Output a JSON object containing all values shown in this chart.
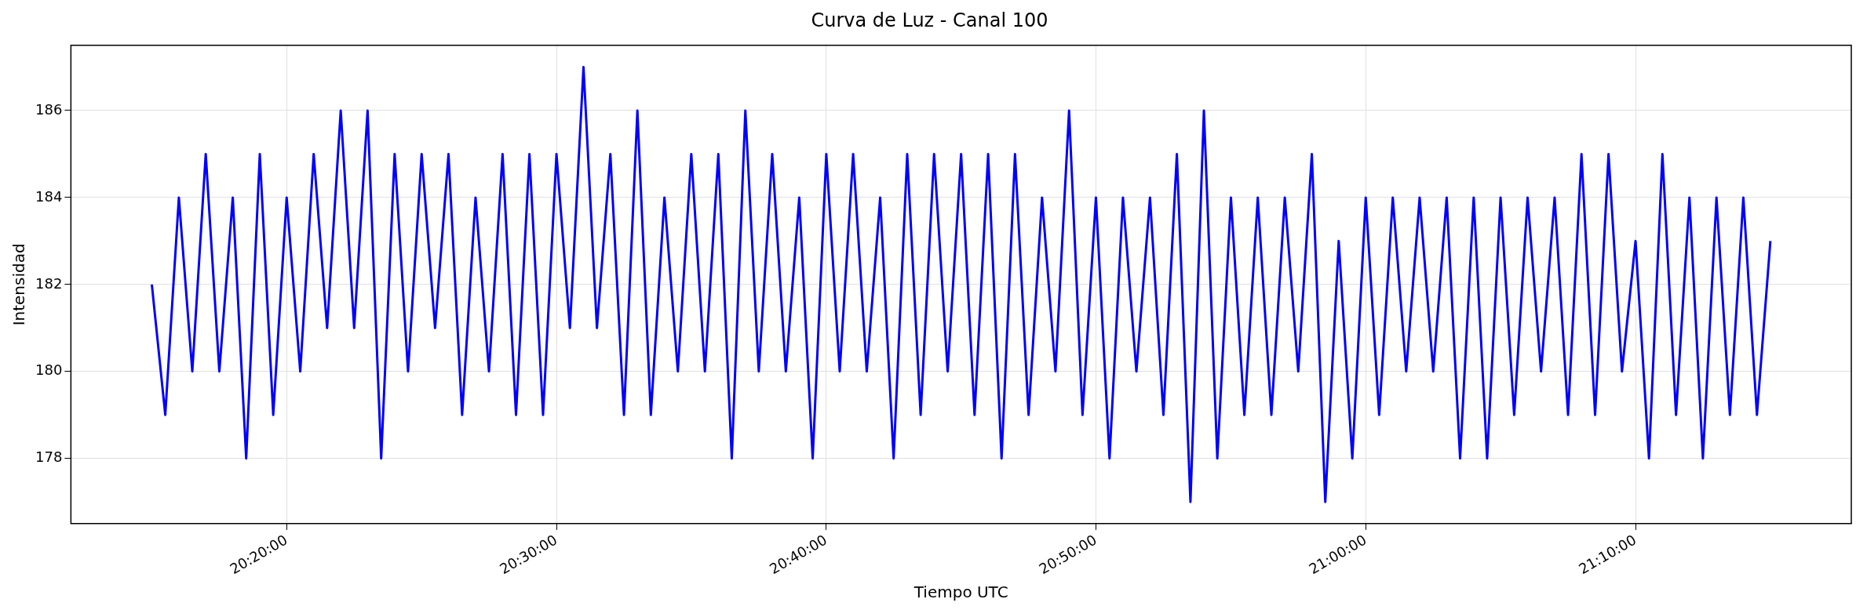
{
  "chart_data": {
    "type": "line",
    "title": "Curva de Luz - Canal 100",
    "xlabel": "Tiempo UTC",
    "ylabel": "Intensidad",
    "x": [
      20.25,
      20.2583,
      20.2667,
      20.275,
      20.2833,
      20.2917,
      20.3,
      20.3083,
      20.3167,
      20.325,
      20.3333,
      20.3417,
      20.35,
      20.3583,
      20.3667,
      20.375,
      20.3833,
      20.3917,
      20.4,
      20.4083,
      20.4167,
      20.425,
      20.4333,
      20.4417,
      20.45,
      20.4583,
      20.4667,
      20.475,
      20.4833,
      20.4917,
      20.5,
      20.5083,
      20.5167,
      20.525,
      20.5333,
      20.5417,
      20.55,
      20.5583,
      20.5667,
      20.575,
      20.5833,
      20.5917,
      20.6,
      20.6083,
      20.6167,
      20.625,
      20.6333,
      20.6417,
      20.65,
      20.6583,
      20.6667,
      20.675,
      20.6833,
      20.6917,
      20.7,
      20.7083,
      20.7167,
      20.725,
      20.7333,
      20.7417,
      20.75,
      20.7583,
      20.7667,
      20.775,
      20.7833,
      20.7917,
      20.8,
      20.8083,
      20.8167,
      20.825,
      20.8333,
      20.8417,
      20.85,
      20.8583,
      20.8667,
      20.875,
      20.8833,
      20.8917,
      20.9,
      20.9083,
      20.9167,
      20.925,
      20.9333,
      20.9417,
      20.95,
      20.9583,
      20.9667,
      20.975,
      20.9833,
      20.9917,
      21,
      21.0083,
      21.0167,
      21.025,
      21.0333,
      21.0417,
      21.05,
      21.0583,
      21.0667,
      21.075,
      21.0833,
      21.0917,
      21.1,
      21.1083,
      21.1167,
      21.125,
      21.1333,
      21.1417,
      21.15,
      21.1583,
      21.1667,
      21.175,
      21.1833,
      21.1917,
      21.2,
      21.2083,
      21.2167,
      21.225,
      21.2333,
      21.2417,
      21.25
    ],
    "series": [
      {
        "color": "#0000ff",
        "values": [
          182,
          179,
          184,
          180,
          185,
          180,
          184,
          178,
          185,
          179,
          184,
          180,
          185,
          181,
          186,
          181,
          186,
          178,
          185,
          180,
          185,
          181,
          185,
          179,
          184,
          180,
          185,
          179,
          185,
          179,
          185,
          181,
          187,
          181,
          185,
          179,
          186,
          179,
          184,
          180,
          185,
          180,
          185,
          178,
          186,
          180,
          185,
          180,
          184,
          178,
          185,
          180,
          185,
          180,
          184,
          178,
          185,
          179,
          185,
          180,
          185,
          179,
          185,
          178,
          185,
          179,
          184,
          180,
          186,
          179,
          184,
          178,
          184,
          180,
          184,
          179,
          185,
          177,
          186,
          178,
          184,
          179,
          184,
          179,
          184,
          180,
          185,
          177,
          183,
          178,
          184,
          179,
          184,
          180,
          184,
          180,
          184,
          178,
          184,
          178,
          184,
          179,
          184,
          180,
          184,
          179,
          185,
          179,
          185,
          180,
          183,
          178,
          185,
          179,
          184,
          178,
          184,
          179,
          184,
          179,
          183
        ]
      }
    ],
    "xlim": [
      20.2,
      21.3
    ],
    "xticks": [
      {
        "value": 20.3333,
        "label": "20:20:00"
      },
      {
        "value": 20.5,
        "label": "20:30:00"
      },
      {
        "value": 20.6667,
        "label": "20:40:00"
      },
      {
        "value": 20.8333,
        "label": "20:50:00"
      },
      {
        "value": 21,
        "label": "21:00:00"
      },
      {
        "value": 21.1667,
        "label": "21:10:00"
      }
    ],
    "ylim": [
      176.5,
      187.5
    ],
    "yticks": [
      178,
      180,
      182,
      184,
      186
    ],
    "grid": true,
    "line_style": "solid",
    "marker": "none"
  }
}
